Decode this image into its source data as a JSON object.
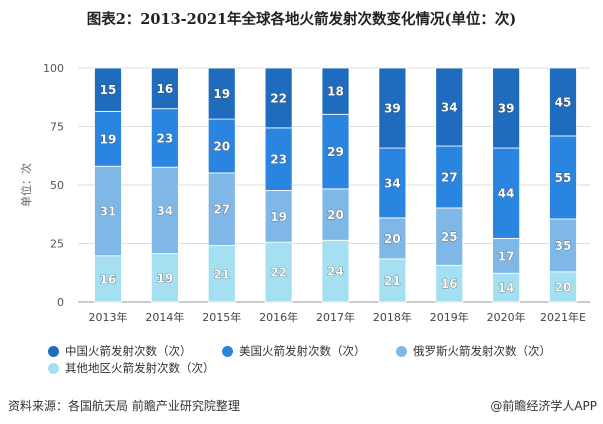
{
  "title": "图表2：2013-2021年全球各地火箭发射次数变化情况(单位：次)",
  "chart_data": {
    "type": "bar",
    "stacked": "percent",
    "title": "图表2：2013-2021年全球各地火箭发射次数变化情况(单位：次)",
    "ylabel": "单位：次",
    "ylim": [
      0,
      100
    ],
    "yticks": [
      0,
      25,
      50,
      75,
      100
    ],
    "grid": true,
    "legend_position": "bottom",
    "categories": [
      "2013年",
      "2014年",
      "2015年",
      "2016年",
      "2017年",
      "2018年",
      "2019年",
      "2020年",
      "2021年E"
    ],
    "series": [
      {
        "name": "其他地区火箭发射次数（次）",
        "color": "#a4e0f2",
        "values": [
          16,
          19,
          21,
          22,
          24,
          21,
          16,
          14,
          20
        ]
      },
      {
        "name": "俄罗斯火箭发射次数（次）",
        "color": "#7fb8e6",
        "values": [
          31,
          34,
          27,
          19,
          20,
          20,
          25,
          17,
          35
        ]
      },
      {
        "name": "美国火箭发射次数（次）",
        "color": "#2a85e0",
        "values": [
          19,
          23,
          20,
          23,
          29,
          34,
          27,
          44,
          55
        ]
      },
      {
        "name": "中国火箭发射次数（次）",
        "color": "#1f6cbe",
        "values": [
          15,
          16,
          19,
          22,
          18,
          39,
          34,
          39,
          45
        ]
      }
    ]
  },
  "legend": [
    {
      "label": "中国火箭发射次数（次）",
      "color": "#1f6cbe"
    },
    {
      "label": "美国火箭发射次数（次）",
      "color": "#2a85e0"
    },
    {
      "label": "俄罗斯火箭发射次数（次）",
      "color": "#7fb8e6"
    },
    {
      "label": "其他地区火箭发射次数（次）",
      "color": "#a4e0f2"
    }
  ],
  "footer": {
    "source": "资料来源：各国航天局 前瞻产业研究院整理",
    "credit": "@前瞻经济学人APP"
  }
}
